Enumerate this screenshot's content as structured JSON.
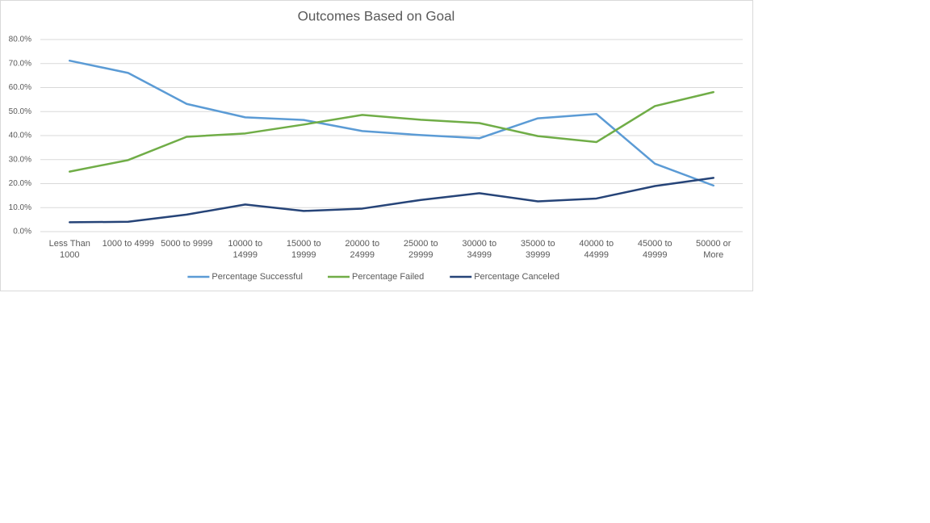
{
  "chart_data": {
    "type": "line",
    "title": "Outcomes Based on Goal",
    "categories": [
      "Less Than 1000",
      "1000 to 4999",
      "5000 to 9999",
      "10000 to 14999",
      "15000 to 19999",
      "20000 to 24999",
      "25000 to 29999",
      "30000 to 34999",
      "35000 to 39999",
      "40000 to 44999",
      "45000 to 49999",
      "50000 or More"
    ],
    "series": [
      {
        "name": "Percentage Successful",
        "color": "#5b9bd5",
        "values": [
          71.2,
          66.1,
          53.2,
          47.6,
          46.5,
          41.9,
          40.2,
          38.9,
          47.2,
          49.0,
          28.3,
          19.2
        ]
      },
      {
        "name": "Percentage Failed",
        "color": "#70ad47",
        "values": [
          25.0,
          29.8,
          39.5,
          40.9,
          44.6,
          48.6,
          46.6,
          45.2,
          39.8,
          37.3,
          52.3,
          58.1
        ]
      },
      {
        "name": "Percentage Canceled",
        "color": "#264478",
        "values": [
          3.9,
          4.1,
          7.1,
          11.3,
          8.6,
          9.6,
          13.2,
          16.0,
          12.6,
          13.8,
          19.0,
          22.4
        ]
      }
    ],
    "ylim": [
      0,
      80
    ],
    "yticks": [
      {
        "value": 0,
        "label": "0.0%"
      },
      {
        "value": 10,
        "label": "10.0%"
      },
      {
        "value": 20,
        "label": "20.0%"
      },
      {
        "value": 30,
        "label": "30.0%"
      },
      {
        "value": 40,
        "label": "40.0%"
      },
      {
        "value": 50,
        "label": "50.0%"
      },
      {
        "value": 60,
        "label": "60.0%"
      },
      {
        "value": 70,
        "label": "70.0%"
      },
      {
        "value": 80,
        "label": "80.0%"
      }
    ],
    "grid": true,
    "legend": "bottom"
  }
}
